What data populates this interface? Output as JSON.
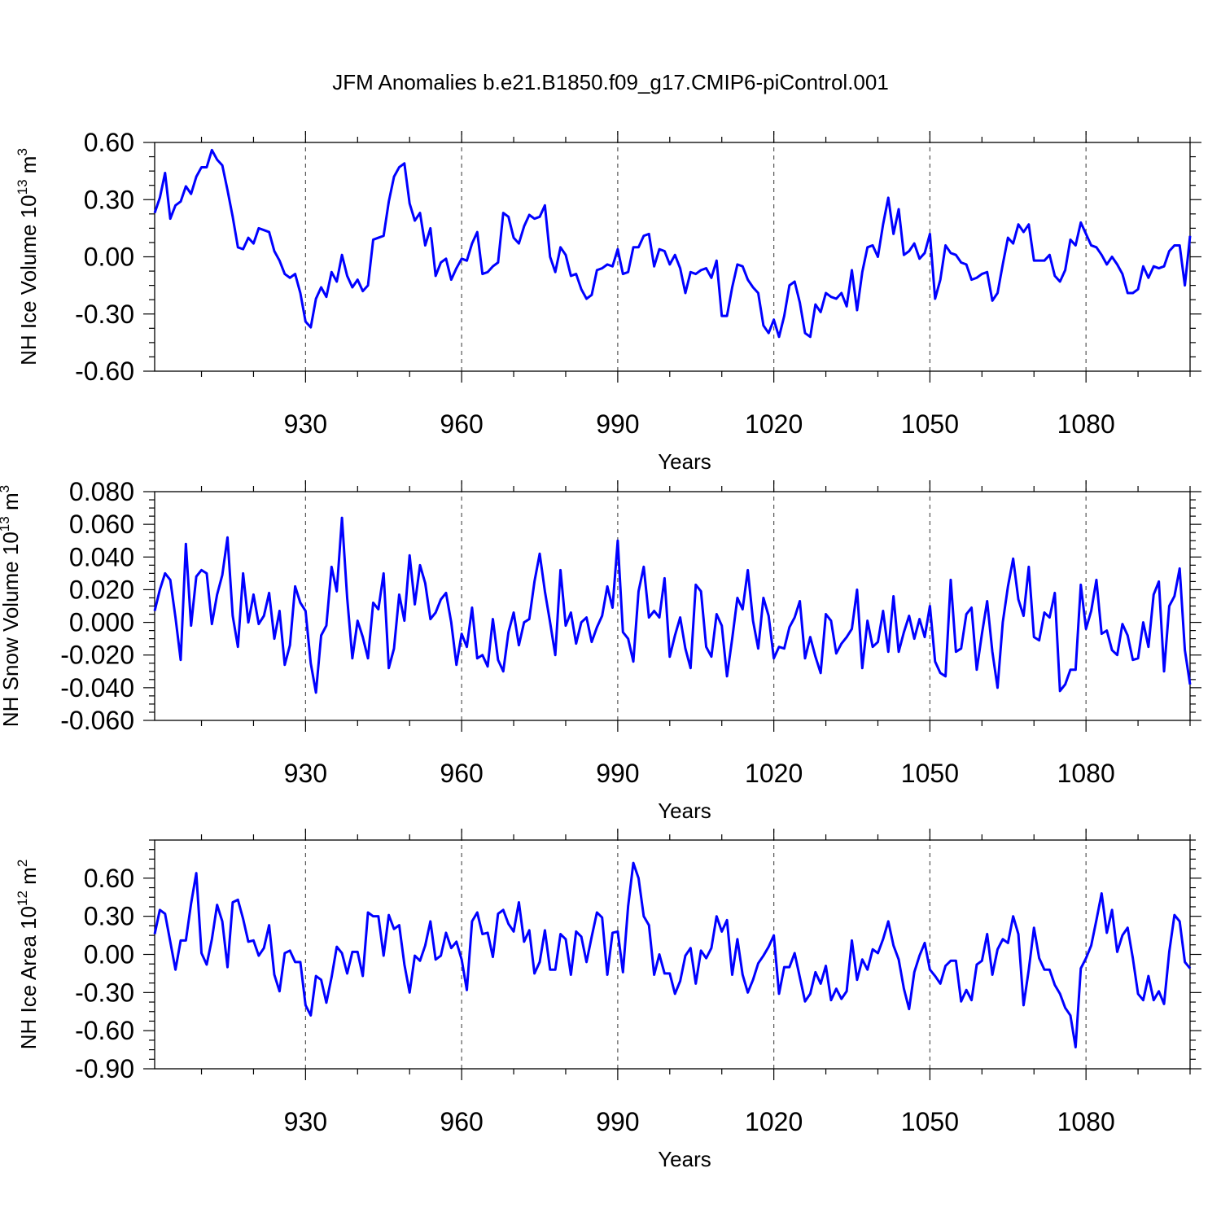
{
  "chart_data": [
    {
      "type": "line",
      "title": "JFM Anomalies b.e21.B1850.f09_g17.CMIP6-piControl.001",
      "xlabel": "Years",
      "ylabel_main": "NH Ice Volume 10",
      "ylabel_sup": "13",
      "ylabel_unit": " m",
      "ylabel_unit_sup": "3",
      "xlim": [
        901,
        1100
      ],
      "ylim": [
        -0.6,
        0.6
      ],
      "yticks": [
        -0.6,
        -0.3,
        0.0,
        0.3,
        0.6
      ],
      "ytick_labels": [
        "-0.60",
        "-0.30",
        "0.00",
        "0.30",
        "0.60"
      ],
      "xticks": [
        930,
        960,
        990,
        1020,
        1050,
        1080
      ],
      "xtick_labels": [
        "930",
        "960",
        "990",
        "1020",
        "1050",
        "1080"
      ],
      "x_start": 901,
      "series": [
        {
          "name": "NH Ice Volume",
          "color": "#0000ff",
          "values": [
            0.23,
            0.31,
            0.44,
            0.2,
            0.27,
            0.29,
            0.37,
            0.33,
            0.42,
            0.47,
            0.47,
            0.56,
            0.51,
            0.48,
            0.35,
            0.21,
            0.05,
            0.04,
            0.1,
            0.07,
            0.15,
            0.14,
            0.13,
            0.03,
            -0.02,
            -0.09,
            -0.11,
            -0.09,
            -0.19,
            -0.34,
            -0.37,
            -0.22,
            -0.16,
            -0.21,
            -0.08,
            -0.13,
            0.01,
            -0.1,
            -0.16,
            -0.12,
            -0.18,
            -0.15,
            0.09,
            0.1,
            0.11,
            0.29,
            0.42,
            0.47,
            0.49,
            0.28,
            0.19,
            0.23,
            0.06,
            0.15,
            -0.1,
            -0.03,
            -0.01,
            -0.12,
            -0.06,
            -0.01,
            -0.02,
            0.07,
            0.13,
            -0.09,
            -0.08,
            -0.05,
            -0.03,
            0.23,
            0.21,
            0.1,
            0.07,
            0.16,
            0.22,
            0.2,
            0.21,
            0.27,
            0.0,
            -0.08,
            0.05,
            0.01,
            -0.1,
            -0.09,
            -0.17,
            -0.22,
            -0.2,
            -0.07,
            -0.06,
            -0.04,
            -0.05,
            0.04,
            -0.09,
            -0.08,
            0.05,
            0.05,
            0.11,
            0.12,
            -0.05,
            0.04,
            0.03,
            -0.04,
            0.01,
            -0.06,
            -0.19,
            -0.08,
            -0.09,
            -0.07,
            -0.06,
            -0.11,
            -0.02,
            -0.31,
            -0.31,
            -0.16,
            -0.04,
            -0.05,
            -0.12,
            -0.16,
            -0.19,
            -0.36,
            -0.4,
            -0.33,
            -0.42,
            -0.31,
            -0.15,
            -0.13,
            -0.24,
            -0.4,
            -0.42,
            -0.25,
            -0.29,
            -0.19,
            -0.21,
            -0.22,
            -0.19,
            -0.26,
            -0.07,
            -0.28,
            -0.08,
            0.05,
            0.06,
            0.0,
            0.17,
            0.31,
            0.12,
            0.25,
            0.01,
            0.03,
            0.07,
            -0.01,
            0.02,
            0.12,
            -0.22,
            -0.12,
            0.06,
            0.02,
            0.01,
            -0.03,
            -0.04,
            -0.12,
            -0.11,
            -0.09,
            -0.08,
            -0.23,
            -0.19,
            -0.04,
            0.1,
            0.07,
            0.17,
            0.13,
            0.17,
            -0.02,
            -0.02,
            -0.02,
            0.01,
            -0.1,
            -0.13,
            -0.07,
            0.09,
            0.06,
            0.18,
            0.12,
            0.06,
            0.05,
            0.01,
            -0.04,
            0.0,
            -0.04,
            -0.09,
            -0.19,
            -0.19,
            -0.17,
            -0.05,
            -0.11,
            -0.05,
            -0.06,
            -0.05,
            0.03,
            0.06,
            0.06,
            -0.15,
            0.11
          ]
        }
      ]
    },
    {
      "type": "line",
      "xlabel": "Years",
      "ylabel_main": "NH Snow Volume 10",
      "ylabel_sup": "13",
      "ylabel_unit": " m",
      "ylabel_unit_sup": "3",
      "xlim": [
        901,
        1100
      ],
      "ylim": [
        -0.06,
        0.08
      ],
      "yticks": [
        -0.06,
        -0.04,
        -0.02,
        0.0,
        0.02,
        0.04,
        0.06,
        0.08
      ],
      "ytick_labels": [
        "-0.060",
        "-0.040",
        "-0.020",
        "0.000",
        "0.020",
        "0.040",
        "0.060",
        "0.080"
      ],
      "xticks": [
        930,
        960,
        990,
        1020,
        1050,
        1080
      ],
      "xtick_labels": [
        "930",
        "960",
        "990",
        "1020",
        "1050",
        "1080"
      ],
      "x_start": 901,
      "series": [
        {
          "name": "NH Snow Volume",
          "color": "#0000ff",
          "values": [
            0.007,
            0.02,
            0.03,
            0.026,
            0.003,
            -0.023,
            0.048,
            -0.002,
            0.028,
            0.032,
            0.03,
            -0.001,
            0.017,
            0.029,
            0.052,
            0.004,
            -0.015,
            0.03,
            0.0,
            0.017,
            -0.001,
            0.004,
            0.018,
            -0.01,
            0.007,
            -0.026,
            -0.014,
            0.022,
            0.012,
            0.007,
            -0.025,
            -0.043,
            -0.008,
            -0.002,
            0.034,
            0.019,
            0.064,
            0.015,
            -0.022,
            0.001,
            -0.009,
            -0.022,
            0.012,
            0.008,
            0.03,
            -0.028,
            -0.016,
            0.017,
            0.001,
            0.041,
            0.011,
            0.035,
            0.024,
            0.002,
            0.006,
            0.014,
            0.018,
            0.0,
            -0.026,
            -0.007,
            -0.015,
            0.009,
            -0.022,
            -0.02,
            -0.027,
            0.002,
            -0.023,
            -0.03,
            -0.006,
            0.006,
            -0.014,
            0.0,
            0.002,
            0.025,
            0.042,
            0.019,
            0.0,
            -0.02,
            0.032,
            -0.002,
            0.006,
            -0.013,
            0.0,
            0.003,
            -0.012,
            -0.003,
            0.004,
            0.022,
            0.009,
            0.05,
            -0.006,
            -0.01,
            -0.024,
            0.019,
            0.034,
            0.003,
            0.007,
            0.003,
            0.027,
            -0.021,
            -0.008,
            0.003,
            -0.016,
            -0.028,
            0.023,
            0.019,
            -0.015,
            -0.021,
            0.005,
            -0.002,
            -0.033,
            -0.01,
            0.015,
            0.008,
            0.032,
            0.001,
            -0.016,
            0.015,
            0.004,
            -0.022,
            -0.015,
            -0.016,
            -0.003,
            0.003,
            0.013,
            -0.022,
            -0.009,
            -0.021,
            -0.031,
            0.005,
            0.001,
            -0.019,
            -0.013,
            -0.009,
            -0.004,
            0.02,
            -0.028,
            0.001,
            -0.015,
            -0.012,
            0.007,
            -0.018,
            0.016,
            -0.018,
            -0.006,
            0.004,
            -0.01,
            0.002,
            -0.009,
            0.01,
            -0.024,
            -0.031,
            -0.033,
            0.026,
            -0.018,
            -0.016,
            0.005,
            0.009,
            -0.029,
            -0.007,
            0.013,
            -0.018,
            -0.04,
            0.0,
            0.022,
            0.039,
            0.014,
            0.004,
            0.034,
            -0.009,
            -0.011,
            0.006,
            0.003,
            0.018,
            -0.042,
            -0.038,
            -0.029,
            -0.029,
            0.023,
            -0.004,
            0.007,
            0.026,
            -0.007,
            -0.005,
            -0.017,
            -0.02,
            -0.001,
            -0.008,
            -0.023,
            -0.022,
            0.0,
            -0.015,
            0.017,
            0.025,
            -0.03,
            0.01,
            0.016,
            0.033,
            -0.017,
            -0.038
          ]
        }
      ]
    },
    {
      "type": "line",
      "xlabel": "Years",
      "ylabel_main": "NH Ice Area 10",
      "ylabel_sup": "12",
      "ylabel_unit": " m",
      "ylabel_unit_sup": "2",
      "xlim": [
        901,
        1100
      ],
      "ylim": [
        -0.9,
        0.9
      ],
      "yticks": [
        -0.9,
        -0.6,
        -0.3,
        0.0,
        0.3,
        0.6
      ],
      "ytick_labels": [
        "-0.90",
        "-0.60",
        "-0.30",
        "0.00",
        "0.30",
        "0.60"
      ],
      "xticks": [
        930,
        960,
        990,
        1020,
        1050,
        1080
      ],
      "xtick_labels": [
        "930",
        "960",
        "990",
        "1020",
        "1050",
        "1080"
      ],
      "x_start": 901,
      "series": [
        {
          "name": "NH Ice Area",
          "color": "#0000ff",
          "values": [
            0.16,
            0.35,
            0.32,
            0.1,
            -0.12,
            0.11,
            0.11,
            0.4,
            0.64,
            0.01,
            -0.08,
            0.12,
            0.39,
            0.26,
            -0.1,
            0.41,
            0.43,
            0.28,
            0.1,
            0.11,
            -0.01,
            0.05,
            0.23,
            -0.16,
            -0.29,
            0.01,
            0.03,
            -0.06,
            -0.06,
            -0.4,
            -0.48,
            -0.17,
            -0.2,
            -0.38,
            -0.18,
            0.06,
            0.01,
            -0.15,
            0.02,
            0.02,
            -0.17,
            0.33,
            0.3,
            0.3,
            -0.01,
            0.31,
            0.2,
            0.23,
            -0.08,
            -0.3,
            -0.01,
            -0.05,
            0.07,
            0.26,
            -0.04,
            -0.01,
            0.17,
            0.05,
            0.1,
            -0.04,
            -0.28,
            0.26,
            0.33,
            0.16,
            0.17,
            -0.02,
            0.32,
            0.35,
            0.24,
            0.18,
            0.41,
            0.1,
            0.19,
            -0.15,
            -0.06,
            0.19,
            -0.12,
            -0.12,
            0.16,
            0.12,
            -0.16,
            0.18,
            0.14,
            -0.06,
            0.14,
            0.33,
            0.29,
            -0.16,
            0.17,
            0.18,
            -0.14,
            0.38,
            0.72,
            0.6,
            0.3,
            0.23,
            -0.16,
            0.0,
            -0.15,
            -0.15,
            -0.31,
            -0.21,
            -0.01,
            0.05,
            -0.23,
            0.03,
            -0.03,
            0.05,
            0.3,
            0.18,
            0.27,
            -0.16,
            0.12,
            -0.16,
            -0.3,
            -0.2,
            -0.07,
            -0.01,
            0.06,
            0.15,
            -0.31,
            -0.1,
            -0.1,
            0.01,
            -0.18,
            -0.37,
            -0.31,
            -0.14,
            -0.23,
            -0.09,
            -0.36,
            -0.27,
            -0.35,
            -0.29,
            0.11,
            -0.2,
            -0.04,
            -0.12,
            0.04,
            0.01,
            0.12,
            0.26,
            0.07,
            -0.04,
            -0.27,
            -0.43,
            -0.14,
            -0.01,
            0.09,
            -0.12,
            -0.17,
            -0.23,
            -0.09,
            -0.05,
            -0.05,
            -0.37,
            -0.28,
            -0.36,
            -0.08,
            -0.05,
            0.16,
            -0.16,
            0.04,
            0.12,
            0.09,
            0.3,
            0.16,
            -0.4,
            -0.12,
            0.21,
            -0.03,
            -0.12,
            -0.12,
            -0.24,
            -0.31,
            -0.42,
            -0.48,
            -0.73,
            -0.11,
            -0.03,
            0.07,
            0.27,
            0.48,
            0.17,
            0.35,
            0.02,
            0.15,
            0.21,
            -0.03,
            -0.31,
            -0.36,
            -0.17,
            -0.36,
            -0.29,
            -0.39,
            0.02,
            0.31,
            0.26,
            -0.06,
            -0.11
          ]
        }
      ]
    }
  ]
}
